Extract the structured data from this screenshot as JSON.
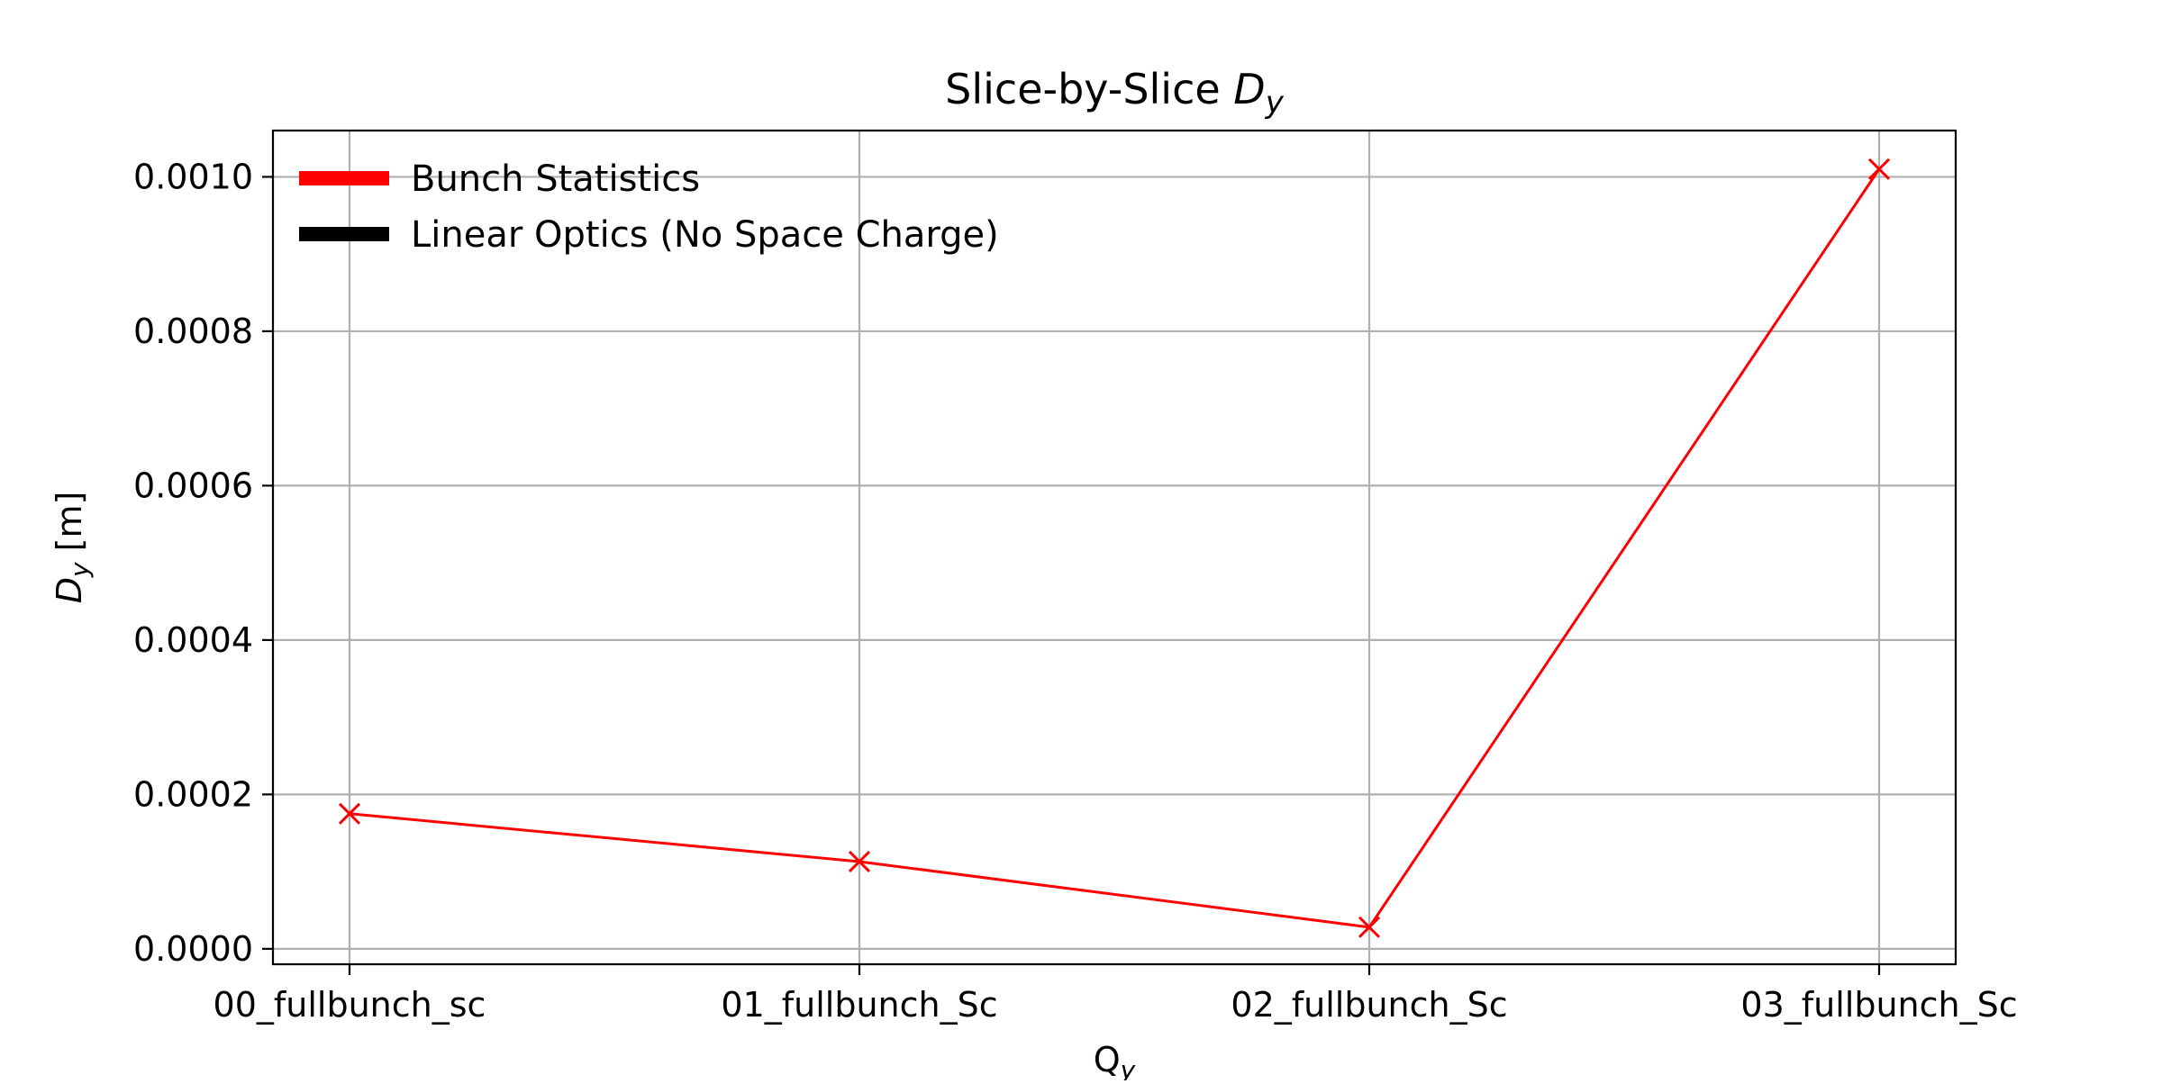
{
  "chart_data": {
    "type": "line",
    "title": "Slice-by-Slice",
    "title_symbol": "D",
    "title_symbol_sub": "y",
    "xlabel": "Q",
    "xlabel_sub": "y",
    "ylabel_symbol": "D",
    "ylabel_sub": "y",
    "ylabel_unit": "[m]",
    "categories": [
      "00_fullbunch_sc",
      "01_fullbunch_Sc",
      "02_fullbunch_Sc",
      "03_fullbunch_Sc"
    ],
    "series": [
      {
        "name": "Bunch Statistics",
        "color": "#ff0000",
        "marker": "x",
        "values": [
          0.000175,
          0.000113,
          2.8e-05,
          0.00101
        ]
      }
    ],
    "legend": {
      "placement": "top-left",
      "entries": [
        {
          "label": "Bunch Statistics",
          "color": "#ff0000"
        },
        {
          "label": "Linear Optics (No Space Charge)",
          "color": "#000000"
        }
      ]
    },
    "ylim": [
      -2e-05,
      0.00106
    ],
    "yticks": [
      0.0,
      0.0002,
      0.0004,
      0.0006,
      0.0008,
      0.001
    ],
    "ytick_labels": [
      "0.0000",
      "0.0002",
      "0.0004",
      "0.0006",
      "0.0008",
      "0.0010"
    ],
    "grid": true
  }
}
